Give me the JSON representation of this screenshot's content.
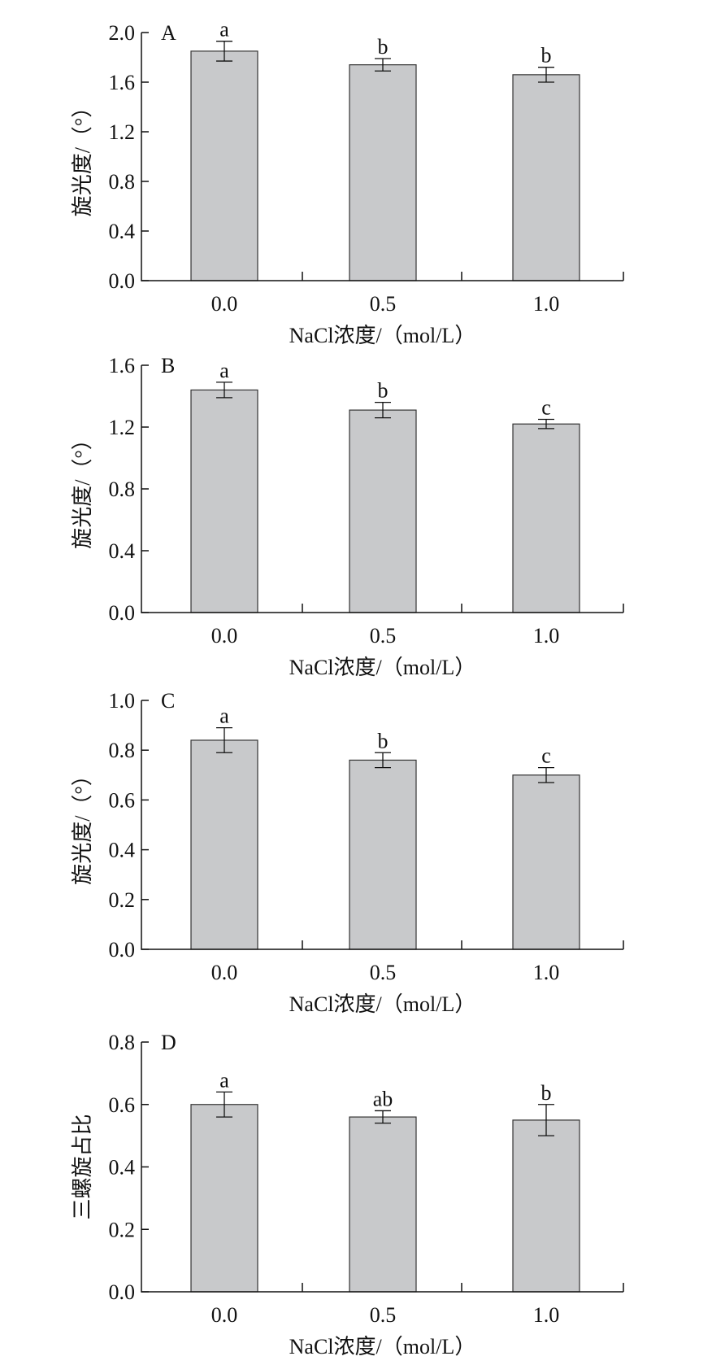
{
  "chart_data": [
    {
      "type": "bar",
      "panel_label": "A",
      "categories": [
        "0.0",
        "0.5",
        "1.0"
      ],
      "values": [
        1.85,
        1.74,
        1.66
      ],
      "errors": [
        0.08,
        0.05,
        0.06
      ],
      "significance": [
        "a",
        "b",
        "b"
      ],
      "xlabel": "NaCl浓度/（mol/L）",
      "ylabel": "旋光度/（°）",
      "ylim": [
        0,
        2.0
      ],
      "yticks": [
        "0.0",
        "0.4",
        "0.8",
        "1.2",
        "1.6",
        "2.0"
      ],
      "bar_color": "#c8c9cb",
      "grid": false
    },
    {
      "type": "bar",
      "panel_label": "B",
      "categories": [
        "0.0",
        "0.5",
        "1.0"
      ],
      "values": [
        1.44,
        1.31,
        1.22
      ],
      "errors": [
        0.05,
        0.05,
        0.03
      ],
      "significance": [
        "a",
        "b",
        "c"
      ],
      "xlabel": "NaCl浓度/（mol/L）",
      "ylabel": "旋光度/（°）",
      "ylim": [
        0,
        1.6
      ],
      "yticks": [
        "0.0",
        "0.4",
        "0.8",
        "1.2",
        "1.6"
      ],
      "bar_color": "#c8c9cb",
      "grid": false
    },
    {
      "type": "bar",
      "panel_label": "C",
      "categories": [
        "0.0",
        "0.5",
        "1.0"
      ],
      "values": [
        0.84,
        0.76,
        0.7
      ],
      "errors": [
        0.05,
        0.03,
        0.03
      ],
      "significance": [
        "a",
        "b",
        "c"
      ],
      "xlabel": "NaCl浓度/（mol/L）",
      "ylabel": "旋光度/（°）",
      "ylim": [
        0,
        1.0
      ],
      "yticks": [
        "0.0",
        "0.2",
        "0.4",
        "0.6",
        "0.8",
        "1.0"
      ],
      "bar_color": "#c8c9cb",
      "grid": false
    },
    {
      "type": "bar",
      "panel_label": "D",
      "categories": [
        "0.0",
        "0.5",
        "1.0"
      ],
      "values": [
        0.6,
        0.56,
        0.55
      ],
      "errors": [
        0.04,
        0.02,
        0.05
      ],
      "significance": [
        "a",
        "ab",
        "b"
      ],
      "xlabel": "NaCl浓度/（mol/L）",
      "ylabel": "三螺旋占比",
      "ylim": [
        0,
        0.8
      ],
      "yticks": [
        "0.0",
        "0.2",
        "0.4",
        "0.6",
        "0.8"
      ],
      "bar_color": "#c8c9cb",
      "grid": false
    }
  ]
}
